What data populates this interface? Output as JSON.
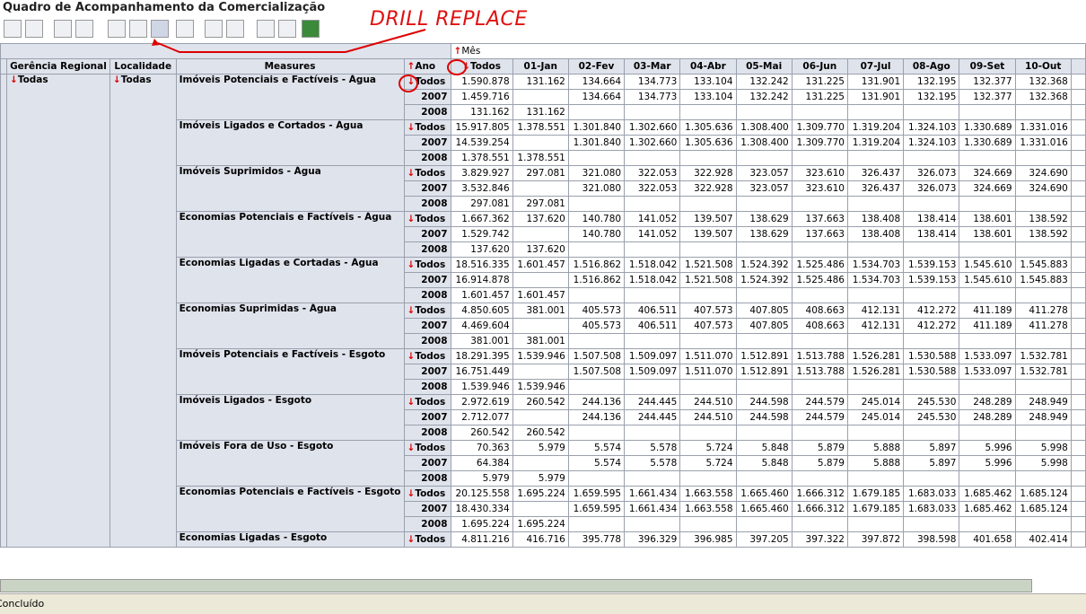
{
  "title": "Quadro de Acompanhamento da Comercialização",
  "annotation": "DRILL REPLACE",
  "table": {
    "column_dimension": "Mês",
    "row_headers": [
      "Gerência Regional",
      "Localidade",
      "Measures",
      "Ano"
    ],
    "columns": [
      "Todos",
      "01-Jan",
      "02-Fev",
      "03-Mar",
      "04-Abr",
      "05-Mai",
      "06-Jun",
      "07-Jul",
      "08-Ago",
      "09-Set",
      "10-Out"
    ],
    "gerencia": "Todas",
    "localidade": "Todas",
    "measures": [
      {
        "name": "Imóveis Potenciais e Factíveis - Água",
        "rows": [
          {
            "ano": "Todos",
            "cells": [
              "1.590.878",
              "131.162",
              "134.664",
              "134.773",
              "133.104",
              "132.242",
              "131.225",
              "131.901",
              "132.195",
              "132.377",
              "132.368"
            ]
          },
          {
            "ano": "2007",
            "cells": [
              "1.459.716",
              null,
              "134.664",
              "134.773",
              "133.104",
              "132.242",
              "131.225",
              "131.901",
              "132.195",
              "132.377",
              "132.368"
            ]
          },
          {
            "ano": "2008",
            "cells": [
              "131.162",
              "131.162"
            ]
          }
        ]
      },
      {
        "name": "Imóveis Ligados e Cortados - Água",
        "rows": [
          {
            "ano": "Todos",
            "cells": [
              "15.917.805",
              "1.378.551",
              "1.301.840",
              "1.302.660",
              "1.305.636",
              "1.308.400",
              "1.309.770",
              "1.319.204",
              "1.324.103",
              "1.330.689",
              "1.331.016"
            ]
          },
          {
            "ano": "2007",
            "cells": [
              "14.539.254",
              null,
              "1.301.840",
              "1.302.660",
              "1.305.636",
              "1.308.400",
              "1.309.770",
              "1.319.204",
              "1.324.103",
              "1.330.689",
              "1.331.016"
            ]
          },
          {
            "ano": "2008",
            "cells": [
              "1.378.551",
              "1.378.551"
            ]
          }
        ]
      },
      {
        "name": "Imóveis Suprimidos - Água",
        "rows": [
          {
            "ano": "Todos",
            "cells": [
              "3.829.927",
              "297.081",
              "321.080",
              "322.053",
              "322.928",
              "323.057",
              "323.610",
              "326.437",
              "326.073",
              "324.669",
              "324.690"
            ]
          },
          {
            "ano": "2007",
            "cells": [
              "3.532.846",
              null,
              "321.080",
              "322.053",
              "322.928",
              "323.057",
              "323.610",
              "326.437",
              "326.073",
              "324.669",
              "324.690"
            ]
          },
          {
            "ano": "2008",
            "cells": [
              "297.081",
              "297.081"
            ]
          }
        ]
      },
      {
        "name": "Economias Potenciais e Factíveis - Água",
        "rows": [
          {
            "ano": "Todos",
            "cells": [
              "1.667.362",
              "137.620",
              "140.780",
              "141.052",
              "139.507",
              "138.629",
              "137.663",
              "138.408",
              "138.414",
              "138.601",
              "138.592"
            ]
          },
          {
            "ano": "2007",
            "cells": [
              "1.529.742",
              null,
              "140.780",
              "141.052",
              "139.507",
              "138.629",
              "137.663",
              "138.408",
              "138.414",
              "138.601",
              "138.592"
            ]
          },
          {
            "ano": "2008",
            "cells": [
              "137.620",
              "137.620"
            ]
          }
        ]
      },
      {
        "name": "Economias Ligadas e Cortadas - Água",
        "rows": [
          {
            "ano": "Todos",
            "cells": [
              "18.516.335",
              "1.601.457",
              "1.516.862",
              "1.518.042",
              "1.521.508",
              "1.524.392",
              "1.525.486",
              "1.534.703",
              "1.539.153",
              "1.545.610",
              "1.545.883"
            ]
          },
          {
            "ano": "2007",
            "cells": [
              "16.914.878",
              null,
              "1.516.862",
              "1.518.042",
              "1.521.508",
              "1.524.392",
              "1.525.486",
              "1.534.703",
              "1.539.153",
              "1.545.610",
              "1.545.883"
            ]
          },
          {
            "ano": "2008",
            "cells": [
              "1.601.457",
              "1.601.457"
            ]
          }
        ]
      },
      {
        "name": "Economias Suprimidas - Água",
        "rows": [
          {
            "ano": "Todos",
            "cells": [
              "4.850.605",
              "381.001",
              "405.573",
              "406.511",
              "407.573",
              "407.805",
              "408.663",
              "412.131",
              "412.272",
              "411.189",
              "411.278"
            ]
          },
          {
            "ano": "2007",
            "cells": [
              "4.469.604",
              null,
              "405.573",
              "406.511",
              "407.573",
              "407.805",
              "408.663",
              "412.131",
              "412.272",
              "411.189",
              "411.278"
            ]
          },
          {
            "ano": "2008",
            "cells": [
              "381.001",
              "381.001"
            ]
          }
        ]
      },
      {
        "name": "Imóveis Potenciais e Factíveis - Esgoto",
        "rows": [
          {
            "ano": "Todos",
            "cells": [
              "18.291.395",
              "1.539.946",
              "1.507.508",
              "1.509.097",
              "1.511.070",
              "1.512.891",
              "1.513.788",
              "1.526.281",
              "1.530.588",
              "1.533.097",
              "1.532.781"
            ]
          },
          {
            "ano": "2007",
            "cells": [
              "16.751.449",
              null,
              "1.507.508",
              "1.509.097",
              "1.511.070",
              "1.512.891",
              "1.513.788",
              "1.526.281",
              "1.530.588",
              "1.533.097",
              "1.532.781"
            ]
          },
          {
            "ano": "2008",
            "cells": [
              "1.539.946",
              "1.539.946"
            ]
          }
        ]
      },
      {
        "name": "Imóveis Ligados - Esgoto",
        "rows": [
          {
            "ano": "Todos",
            "cells": [
              "2.972.619",
              "260.542",
              "244.136",
              "244.445",
              "244.510",
              "244.598",
              "244.579",
              "245.014",
              "245.530",
              "248.289",
              "248.949"
            ]
          },
          {
            "ano": "2007",
            "cells": [
              "2.712.077",
              null,
              "244.136",
              "244.445",
              "244.510",
              "244.598",
              "244.579",
              "245.014",
              "245.530",
              "248.289",
              "248.949"
            ]
          },
          {
            "ano": "2008",
            "cells": [
              "260.542",
              "260.542"
            ]
          }
        ]
      },
      {
        "name": "Imóveis Fora de Uso - Esgoto",
        "rows": [
          {
            "ano": "Todos",
            "cells": [
              "70.363",
              "5.979",
              "5.574",
              "5.578",
              "5.724",
              "5.848",
              "5.879",
              "5.888",
              "5.897",
              "5.996",
              "5.998"
            ]
          },
          {
            "ano": "2007",
            "cells": [
              "64.384",
              null,
              "5.574",
              "5.578",
              "5.724",
              "5.848",
              "5.879",
              "5.888",
              "5.897",
              "5.996",
              "5.998"
            ]
          },
          {
            "ano": "2008",
            "cells": [
              "5.979",
              "5.979"
            ]
          }
        ]
      },
      {
        "name": "Economias Potenciais e Factíveis - Esgoto",
        "rows": [
          {
            "ano": "Todos",
            "cells": [
              "20.125.558",
              "1.695.224",
              "1.659.595",
              "1.661.434",
              "1.663.558",
              "1.665.460",
              "1.666.312",
              "1.679.185",
              "1.683.033",
              "1.685.462",
              "1.685.124"
            ]
          },
          {
            "ano": "2007",
            "cells": [
              "18.430.334",
              null,
              "1.659.595",
              "1.661.434",
              "1.663.558",
              "1.665.460",
              "1.666.312",
              "1.679.185",
              "1.683.033",
              "1.685.462",
              "1.685.124"
            ]
          },
          {
            "ano": "2008",
            "cells": [
              "1.695.224",
              "1.695.224"
            ]
          }
        ]
      },
      {
        "name": "Economias Ligadas - Esgoto",
        "rows": [
          {
            "ano": "Todos",
            "cells": [
              "4.811.216",
              "416.716",
              "395.778",
              "396.329",
              "396.985",
              "397.205",
              "397.322",
              "397.872",
              "398.598",
              "401.658",
              "402.414"
            ]
          }
        ]
      }
    ]
  },
  "status": "Concluído"
}
